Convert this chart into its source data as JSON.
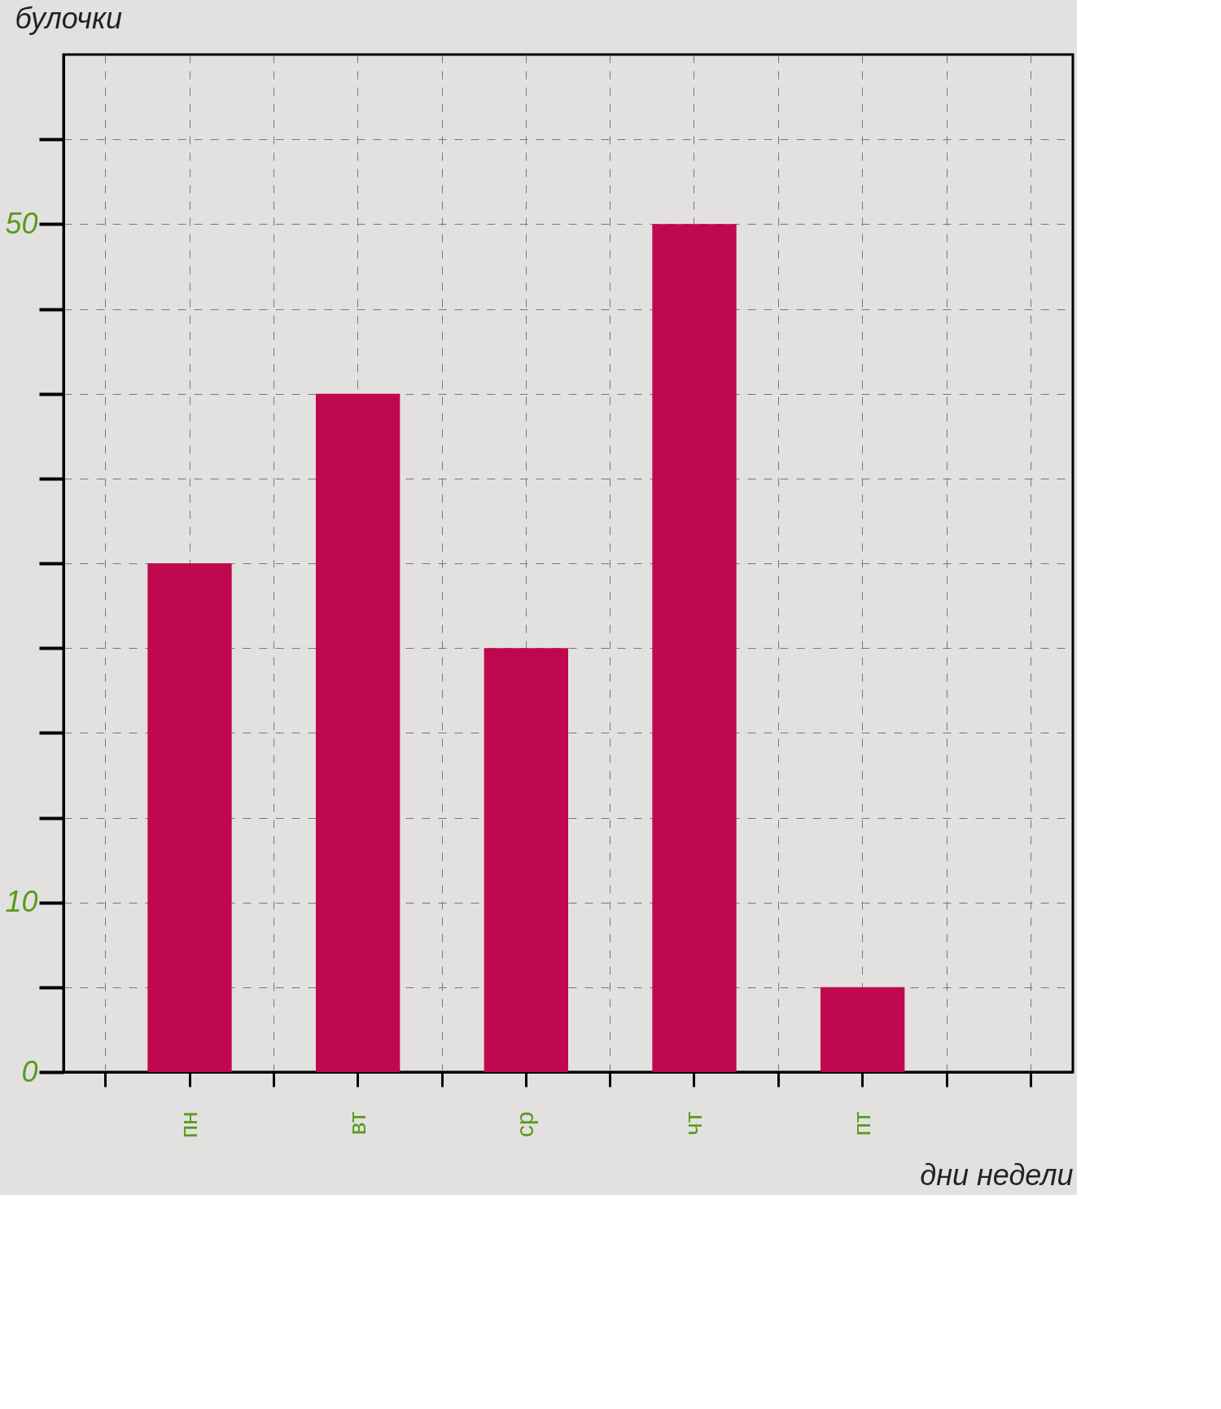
{
  "chart_data": {
    "type": "bar",
    "categories": [
      null,
      "пн",
      null,
      "вт",
      null,
      "ср",
      null,
      "чт",
      null,
      "пт",
      null,
      null
    ],
    "values": [
      null,
      30,
      null,
      40,
      null,
      25,
      null,
      50,
      null,
      5,
      null,
      null
    ],
    "color": "#c0084f",
    "xlabel": "дни недели",
    "ylabel": "булочки",
    "ylim": [
      0,
      60
    ],
    "yticks": [
      0,
      {
        "value": 5,
        "label": null
      },
      10,
      {
        "value": 15,
        "label": null
      },
      {
        "value": 20,
        "label": null
      },
      {
        "value": 25,
        "label": null
      },
      {
        "value": 30,
        "label": null
      },
      {
        "value": 35,
        "label": null
      },
      {
        "value": 40,
        "label": null
      },
      {
        "value": 45,
        "label": null
      },
      50,
      {
        "value": 55,
        "label": null
      }
    ],
    "grid": true
  }
}
